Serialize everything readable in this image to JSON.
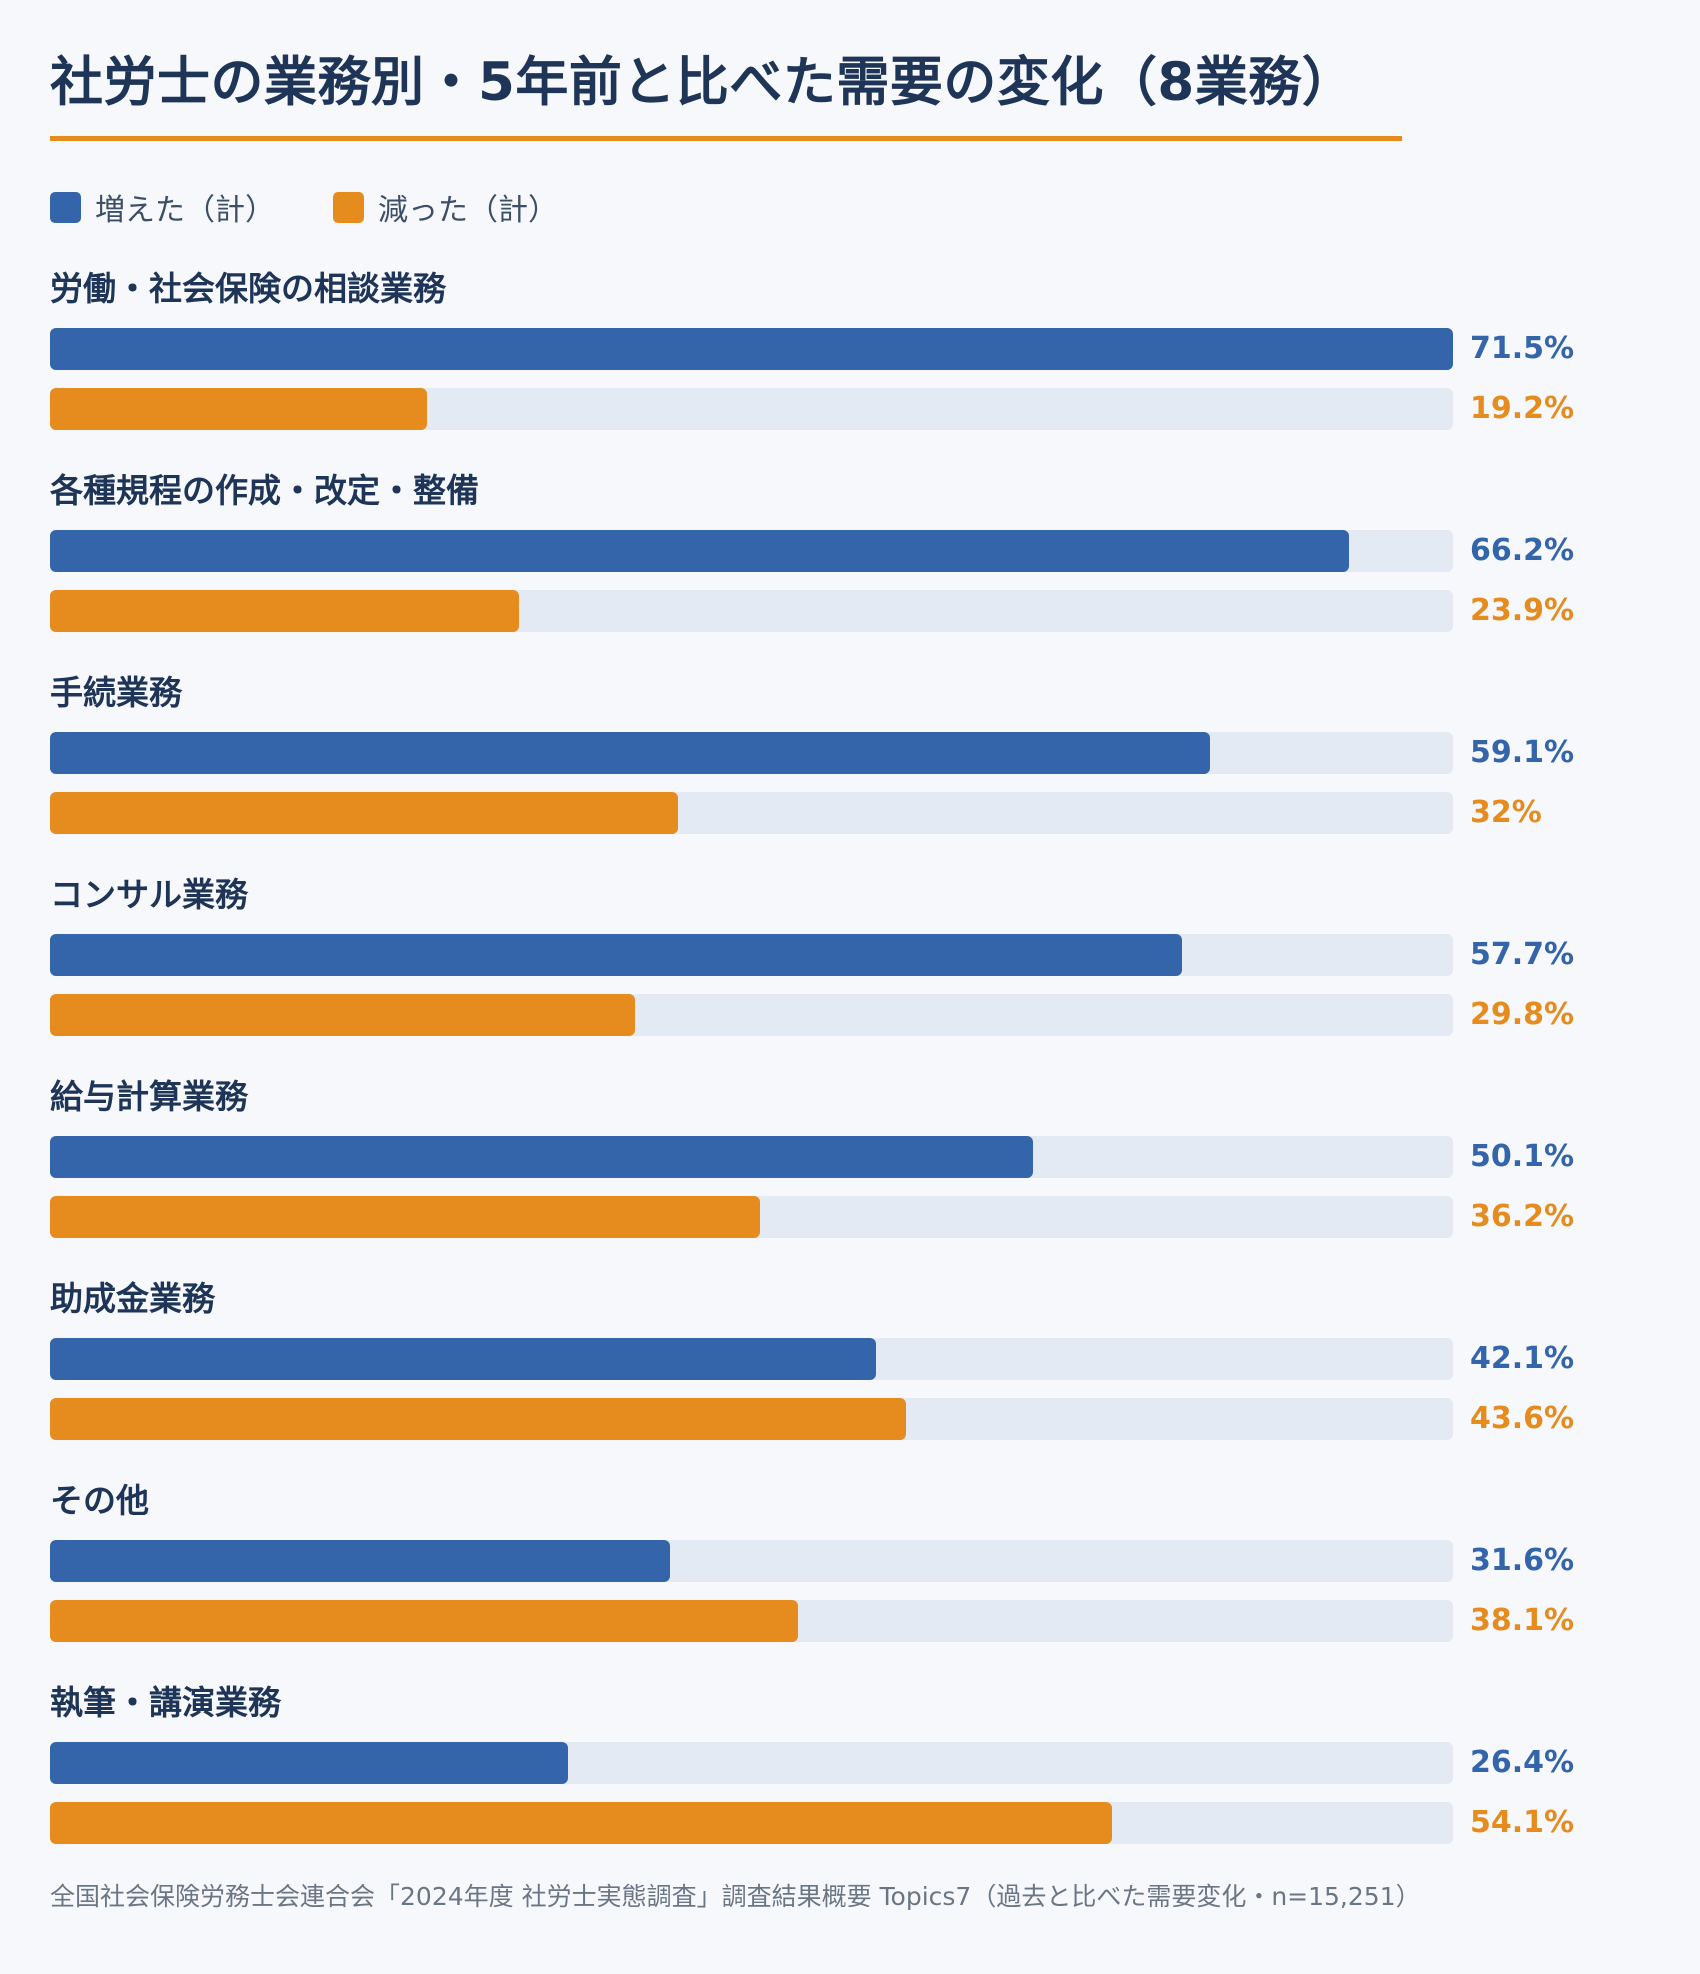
{
  "title": "社労士の業務別・5年前と比べた需要の変化（8業務）",
  "source": "全国社会保険労務士会連合会「2024年度 社労士実態調査」調査結果概要 Topics7（過去と比べた需要変化・n=15,251）",
  "colors": {
    "increased": "#3465ab",
    "decreased": "#e68c1f",
    "track": "#e4eaf3",
    "rule": "#e68c1f"
  },
  "chart_data": {
    "type": "bar",
    "orientation": "horizontal",
    "title": "社労士の業務別・5年前と比べた需要の変化（8業務）",
    "legend": "top-left",
    "xlim": [
      0,
      100
    ],
    "categories": [
      "労働・社会保険の相談業務",
      "各種規程の作成・改定・整備",
      "手続業務",
      "コンサル業務",
      "給与計算業務",
      "助成金業務",
      "その他",
      "執筆・講演業務"
    ],
    "series": [
      {
        "name": "増えた（計）",
        "values": [
          71.5,
          66.2,
          59.1,
          57.7,
          50.1,
          42.1,
          31.6,
          26.4
        ],
        "labels": [
          "71.5%",
          "66.2%",
          "59.1%",
          "57.7%",
          "50.1%",
          "42.1%",
          "31.6%",
          "26.4%"
        ]
      },
      {
        "name": "減った（計）",
        "values": [
          19.2,
          23.9,
          32,
          29.8,
          36.2,
          43.6,
          38.1,
          54.1
        ],
        "labels": [
          "19.2%",
          "23.9%",
          "32%",
          "29.8%",
          "36.2%",
          "43.6%",
          "38.1%",
          "54.1%"
        ]
      }
    ]
  }
}
